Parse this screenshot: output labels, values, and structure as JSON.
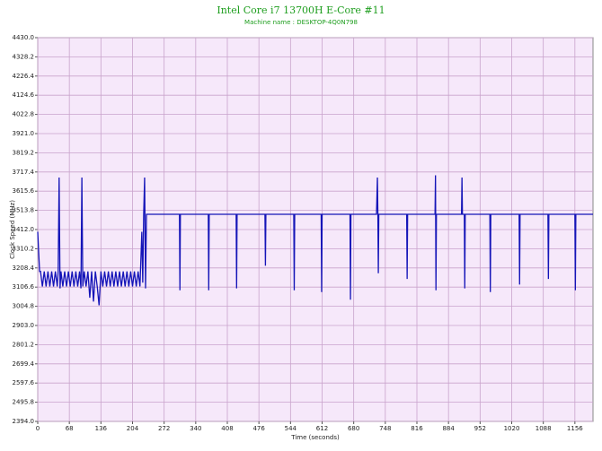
{
  "chart_data": {
    "type": "line",
    "title": "Intel Core i7 13700H E-Core #11",
    "subtitle": "Machine name : DESKTOP-4Q0N798",
    "y_label": "Clock Speed (MHz)",
    "x_label": "Time (seconds)",
    "color": "#1414b8",
    "grid": true,
    "xlim": [
      0,
      1195
    ],
    "ylim": [
      2394.0,
      4430.0
    ],
    "xticks": [
      0,
      68,
      136,
      204,
      272,
      340,
      408,
      476,
      544,
      612,
      680,
      748,
      816,
      884,
      952,
      1020,
      1088,
      1156
    ],
    "yticks": [
      {
        "value": 2394.0,
        "label": "2394.0"
      },
      2495.8,
      2597.6,
      2699.4,
      2801.2,
      {
        "value": 2903.0,
        "label": "2903.0"
      },
      3004.8,
      3106.6,
      3208.4,
      3310.2,
      {
        "value": 3412.0,
        "label": "3412.0"
      },
      3513.8,
      3615.6,
      3717.4,
      3819.2,
      {
        "value": 3921.0,
        "label": "3921.0"
      },
      4022.8,
      4124.6,
      4226.4,
      4328.2,
      {
        "value": 4430.0,
        "label": "4430.0"
      }
    ],
    "x": [
      0,
      2,
      4,
      6,
      10,
      14,
      18,
      22,
      26,
      30,
      34,
      38,
      42,
      44,
      46,
      48,
      50,
      54,
      58,
      62,
      66,
      70,
      74,
      78,
      82,
      86,
      90,
      93,
      95,
      97,
      100,
      104,
      108,
      112,
      116,
      120,
      124,
      128,
      132,
      136,
      140,
      144,
      148,
      152,
      156,
      160,
      164,
      168,
      172,
      176,
      180,
      184,
      188,
      192,
      196,
      200,
      204,
      208,
      212,
      216,
      220,
      224,
      226,
      228,
      230,
      232,
      234,
      305,
      306,
      307,
      367,
      368,
      369,
      427,
      428,
      429,
      489,
      490,
      491,
      551,
      552,
      553,
      610,
      611,
      612,
      672,
      673,
      674,
      729,
      731,
      732,
      733,
      734,
      794,
      795,
      796,
      855,
      856,
      857,
      858,
      912,
      913,
      914,
      918,
      919,
      920,
      973,
      974,
      975,
      1036,
      1037,
      1038,
      1098,
      1099,
      1100,
      1156,
      1157,
      1158,
      1195
    ],
    "values": [
      3400,
      3290,
      3190,
      3190,
      3110,
      3190,
      3110,
      3190,
      3110,
      3190,
      3110,
      3190,
      3110,
      3190,
      3688,
      3100,
      3190,
      3110,
      3190,
      3110,
      3190,
      3110,
      3190,
      3110,
      3190,
      3110,
      3190,
      3100,
      3688,
      3110,
      3190,
      3110,
      3190,
      3050,
      3190,
      3030,
      3190,
      3110,
      3010,
      3190,
      3110,
      3190,
      3110,
      3190,
      3110,
      3190,
      3110,
      3190,
      3110,
      3190,
      3110,
      3190,
      3110,
      3190,
      3110,
      3190,
      3110,
      3190,
      3110,
      3190,
      3110,
      3400,
      3130,
      3493,
      3688,
      3100,
      3493,
      3493,
      3090,
      3493,
      3493,
      3090,
      3493,
      3493,
      3100,
      3493,
      3493,
      3220,
      3493,
      3493,
      3090,
      3493,
      3493,
      3080,
      3493,
      3493,
      3040,
      3493,
      3493,
      3688,
      3493,
      3180,
      3493,
      3493,
      3150,
      3493,
      3493,
      3700,
      3090,
      3493,
      3493,
      3688,
      3493,
      3493,
      3100,
      3493,
      3493,
      3080,
      3493,
      3493,
      3120,
      3493,
      3493,
      3150,
      3493,
      3493,
      3090,
      3493,
      3493
    ]
  }
}
